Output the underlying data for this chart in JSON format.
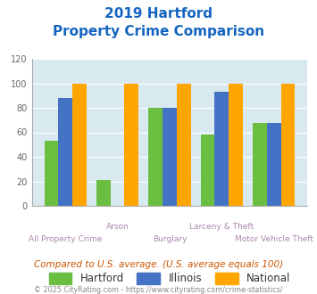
{
  "title_line1": "2019 Hartford",
  "title_line2": "Property Crime Comparison",
  "categories": [
    "All Property Crime",
    "Arson",
    "Burglary",
    "Larceny & Theft",
    "Motor Vehicle Theft"
  ],
  "x_label_top": [
    "",
    "Arson",
    "",
    "Larceny & Theft",
    ""
  ],
  "x_label_bottom": [
    "All Property Crime",
    "",
    "Burglary",
    "",
    "Motor Vehicle Theft"
  ],
  "hartford": [
    53,
    21,
    80,
    58,
    68
  ],
  "illinois": [
    88,
    0,
    80,
    93,
    68
  ],
  "national": [
    100,
    100,
    100,
    100,
    100
  ],
  "hartford_color": "#6abf40",
  "illinois_color": "#4472c4",
  "national_color": "#ffa500",
  "ylim": [
    0,
    120
  ],
  "yticks": [
    0,
    20,
    40,
    60,
    80,
    100,
    120
  ],
  "title_color": "#1565c0",
  "bg_color": "#d8eaf0",
  "legend_labels": [
    "Hartford",
    "Illinois",
    "National"
  ],
  "footnote": "Compared to U.S. average. (U.S. average equals 100)",
  "copyright": "© 2025 CityRating.com - https://www.cityrating.com/crime-statistics/",
  "footnote_color": "#cc5500",
  "copyright_color": "#888888",
  "label_color": "#aa88aa"
}
